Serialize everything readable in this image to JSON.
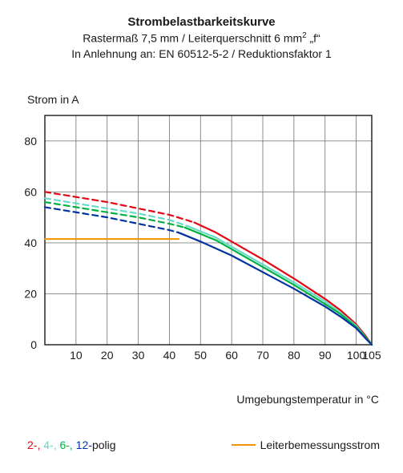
{
  "title": {
    "line1": "Strombelastbarkeitskurve",
    "line2_pre": "Rastermaß 7,5 mm / Leiterquerschnitt 6 mm",
    "line2_sup": "2",
    "line2_post": " „f“",
    "line3": "In Anlehnung an: EN 60512-5-2 / Reduktionsfaktor 1",
    "fontsize_main": 15,
    "fontsize_sub": 14
  },
  "axes": {
    "ylabel": "Strom in A",
    "xlabel": "Umgebungstemperatur in °C",
    "xlim": [
      0,
      105
    ],
    "ylim": [
      0,
      90
    ],
    "xticks": [
      10,
      20,
      30,
      40,
      50,
      60,
      70,
      80,
      90,
      100,
      105
    ],
    "xtick_labels": [
      "10",
      "20",
      "30",
      "40",
      "50",
      "60",
      "70",
      "80",
      "90",
      "100",
      "105"
    ],
    "yticks": [
      0,
      20,
      40,
      60,
      80
    ],
    "grid_color": "#808080",
    "grid_width": 0.9,
    "border_color": "#1a1a1a",
    "border_width": 1.4,
    "background": "#ffffff",
    "label_fontsize": 14,
    "tick_fontsize": 14
  },
  "series": [
    {
      "name": "2-polig-dash",
      "color": "#e30613",
      "width": 2.2,
      "dash": "7 5",
      "points": [
        [
          0,
          60
        ],
        [
          10,
          58
        ],
        [
          20,
          56
        ],
        [
          30,
          53.5
        ],
        [
          40,
          51
        ],
        [
          48,
          48
        ]
      ]
    },
    {
      "name": "2-polig-solid",
      "color": "#e30613",
      "width": 2.2,
      "dash": "",
      "points": [
        [
          48,
          48
        ],
        [
          55,
          44
        ],
        [
          60,
          40.5
        ],
        [
          70,
          33.5
        ],
        [
          80,
          26
        ],
        [
          90,
          18
        ],
        [
          95,
          13.5
        ],
        [
          100,
          8
        ],
        [
          103,
          3.5
        ],
        [
          105,
          0
        ]
      ]
    },
    {
      "name": "4-polig-dash",
      "color": "#68d9c9",
      "width": 2.2,
      "dash": "7 5",
      "points": [
        [
          0,
          57.5
        ],
        [
          10,
          55.5
        ],
        [
          20,
          53.5
        ],
        [
          30,
          51.5
        ],
        [
          40,
          49
        ],
        [
          46,
          46.5
        ]
      ]
    },
    {
      "name": "4-polig-solid",
      "color": "#68d9c9",
      "width": 2.2,
      "dash": "",
      "points": [
        [
          46,
          46.5
        ],
        [
          55,
          42
        ],
        [
          60,
          38.5
        ],
        [
          70,
          31.5
        ],
        [
          80,
          24.5
        ],
        [
          90,
          17
        ],
        [
          95,
          12.5
        ],
        [
          100,
          7.5
        ],
        [
          103,
          3
        ],
        [
          105,
          0
        ]
      ]
    },
    {
      "name": "6-polig-dash",
      "color": "#00b140",
      "width": 2.2,
      "dash": "7 5",
      "points": [
        [
          0,
          56
        ],
        [
          10,
          54
        ],
        [
          20,
          52
        ],
        [
          30,
          50
        ],
        [
          40,
          47.5
        ],
        [
          45,
          46
        ]
      ]
    },
    {
      "name": "6-polig-solid",
      "color": "#00b140",
      "width": 2.2,
      "dash": "",
      "points": [
        [
          45,
          46
        ],
        [
          55,
          41
        ],
        [
          60,
          37.5
        ],
        [
          70,
          30.5
        ],
        [
          80,
          23.5
        ],
        [
          90,
          16
        ],
        [
          95,
          12
        ],
        [
          100,
          7
        ],
        [
          103,
          3
        ],
        [
          105,
          0
        ]
      ]
    },
    {
      "name": "12-polig-dash",
      "color": "#0033a0",
      "width": 2.2,
      "dash": "7 5",
      "points": [
        [
          0,
          54
        ],
        [
          10,
          52
        ],
        [
          20,
          50
        ],
        [
          30,
          47.5
        ],
        [
          40,
          45
        ],
        [
          43,
          44
        ]
      ]
    },
    {
      "name": "12-polig-solid",
      "color": "#0033a0",
      "width": 2.2,
      "dash": "",
      "points": [
        [
          43,
          44
        ],
        [
          50,
          40.5
        ],
        [
          60,
          35
        ],
        [
          70,
          28.5
        ],
        [
          80,
          22
        ],
        [
          90,
          15
        ],
        [
          95,
          11
        ],
        [
          100,
          6.5
        ],
        [
          103,
          2.5
        ],
        [
          105,
          0
        ]
      ]
    },
    {
      "name": "leiterbemessung",
      "color": "#f39200",
      "width": 2.0,
      "dash": "",
      "points": [
        [
          0,
          41.5
        ],
        [
          43,
          41.5
        ]
      ]
    }
  ],
  "legend": {
    "poles": [
      {
        "text": "2-",
        "color": "#e30613"
      },
      {
        "text": " 4-",
        "color": "#68d9c9"
      },
      {
        "text": " 6-",
        "color": "#00b140"
      },
      {
        "text": " 12-",
        "color": "#0033a0"
      }
    ],
    "poles_suffix": "polig",
    "suffix_color": "#1a1a1a",
    "lb_color": "#f39200",
    "lb_label": "Leiterbemessungsstrom"
  }
}
